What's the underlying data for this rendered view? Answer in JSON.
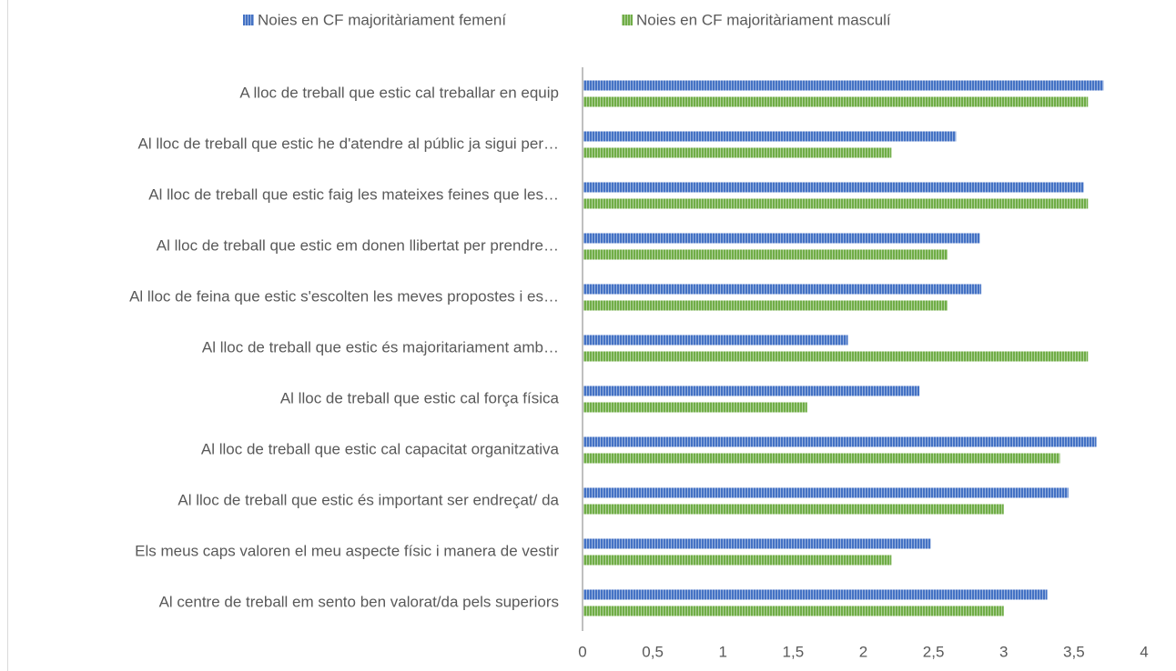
{
  "chart_data": {
    "type": "bar",
    "orientation": "horizontal",
    "categories": [
      "A lloc de treball que estic cal treballar en equip",
      "Al lloc de treball que estic he d'atendre al públic ja sigui per…",
      "Al lloc de treball que estic faig les mateixes feines que les…",
      "Al lloc de treball que estic em donen llibertat per prendre…",
      "Al lloc de feina que estic s'escolten les meves propostes i es…",
      "Al lloc de treball que estic és majoritariament amb…",
      "Al lloc de treball que estic cal força física",
      "Al lloc de treball que estic cal capacitat organitzativa",
      "Al lloc de treball que estic és important ser endreçat/ da",
      "Els meus caps valoren el meu aspecte físic i manera de vestir",
      "Al centre de treball em sento ben valorat/da pels superiors"
    ],
    "series": [
      {
        "name": "Noies en CF majoritàriament femení",
        "color": "#4472c4",
        "values": [
          3.71,
          2.66,
          3.57,
          2.83,
          2.84,
          1.89,
          2.4,
          3.66,
          3.46,
          2.48,
          3.31
        ]
      },
      {
        "name": "Noies en CF majoritàriament masculí",
        "color": "#70ad47",
        "values": [
          3.6,
          2.2,
          3.6,
          2.6,
          2.6,
          3.6,
          1.6,
          3.4,
          3.0,
          2.2,
          3.0
        ]
      }
    ],
    "xlim": [
      0,
      4
    ],
    "xticks": [
      0,
      {
        "value": 0.5,
        "label": "0,5"
      },
      1,
      {
        "value": 1.5,
        "label": "1,5"
      },
      2,
      {
        "value": 2.5,
        "label": "2,5"
      },
      3,
      {
        "value": 3.5,
        "label": "3,5"
      },
      4
    ],
    "legend": "top",
    "grid": false
  }
}
